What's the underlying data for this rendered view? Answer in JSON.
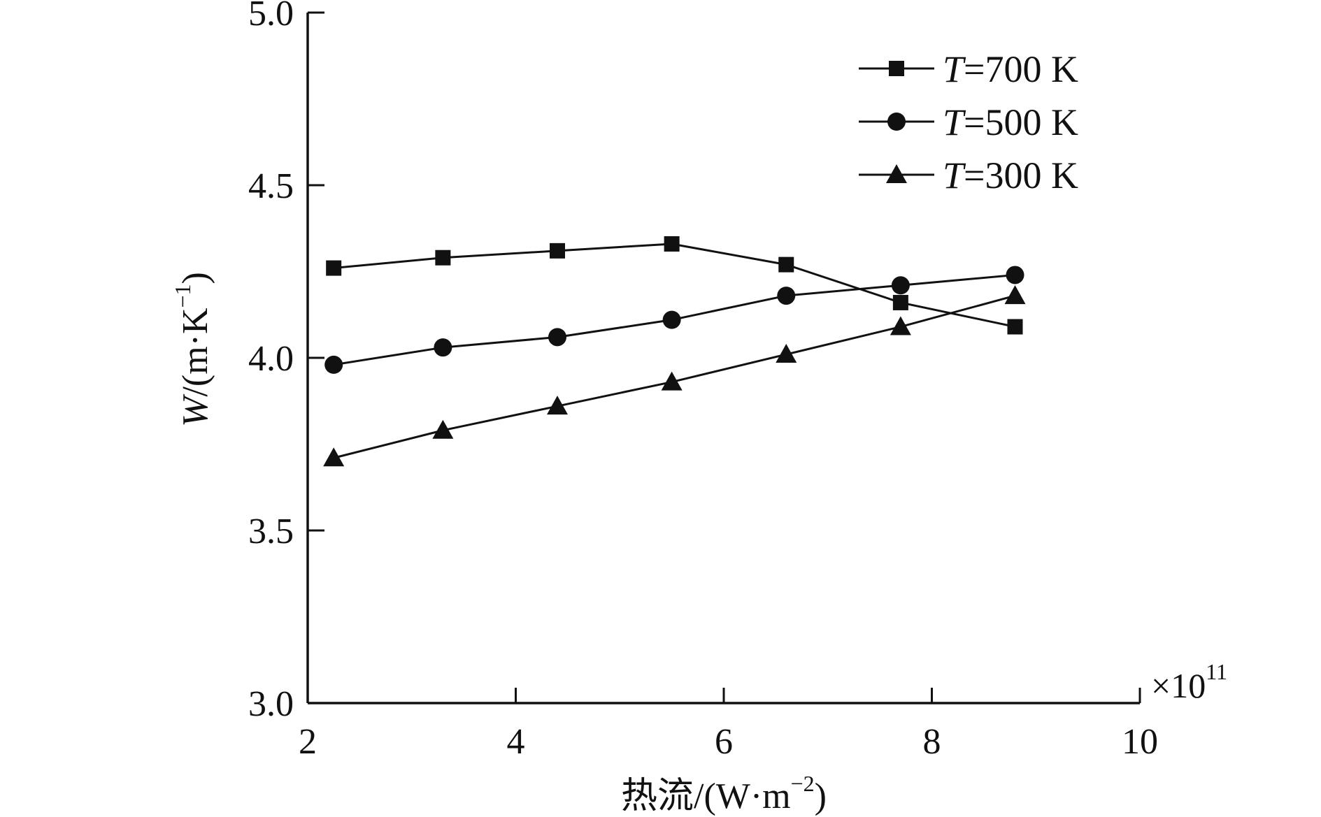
{
  "chart_data": {
    "type": "line",
    "x": [
      2.25,
      3.3,
      4.4,
      5.5,
      6.6,
      7.7,
      8.8
    ],
    "x_multiplier_label": "×10",
    "x_multiplier_exp": "11",
    "xlim": [
      2,
      10
    ],
    "ylim": [
      3.0,
      5.0
    ],
    "xticks": [
      "2",
      "4",
      "6",
      "8",
      "10"
    ],
    "yticks": [
      "3.0",
      "3.5",
      "4.0",
      "4.5",
      "5.0"
    ],
    "xlabel": "热流/(W·m",
    "xlabel_sup": "−2",
    "xlabel_close": ")",
    "ylabel_var": "W",
    "ylabel_rest": "/(m·K",
    "ylabel_sup": "−1",
    "ylabel_close": ")",
    "grid": false,
    "legend_position": "top-right",
    "series": [
      {
        "name_var": "T",
        "name_rest": "=700 K",
        "marker": "square",
        "values": [
          4.26,
          4.29,
          4.31,
          4.33,
          4.27,
          4.16,
          4.09
        ]
      },
      {
        "name_var": "T",
        "name_rest": "=500 K",
        "marker": "circle",
        "values": [
          3.98,
          4.03,
          4.06,
          4.11,
          4.18,
          4.21,
          4.24
        ]
      },
      {
        "name_var": "T",
        "name_rest": "=300 K",
        "marker": "triangle",
        "values": [
          3.71,
          3.79,
          3.86,
          3.93,
          4.01,
          4.09,
          4.18
        ]
      }
    ],
    "colors": {
      "line": "#111111",
      "marker": "#111111"
    }
  }
}
